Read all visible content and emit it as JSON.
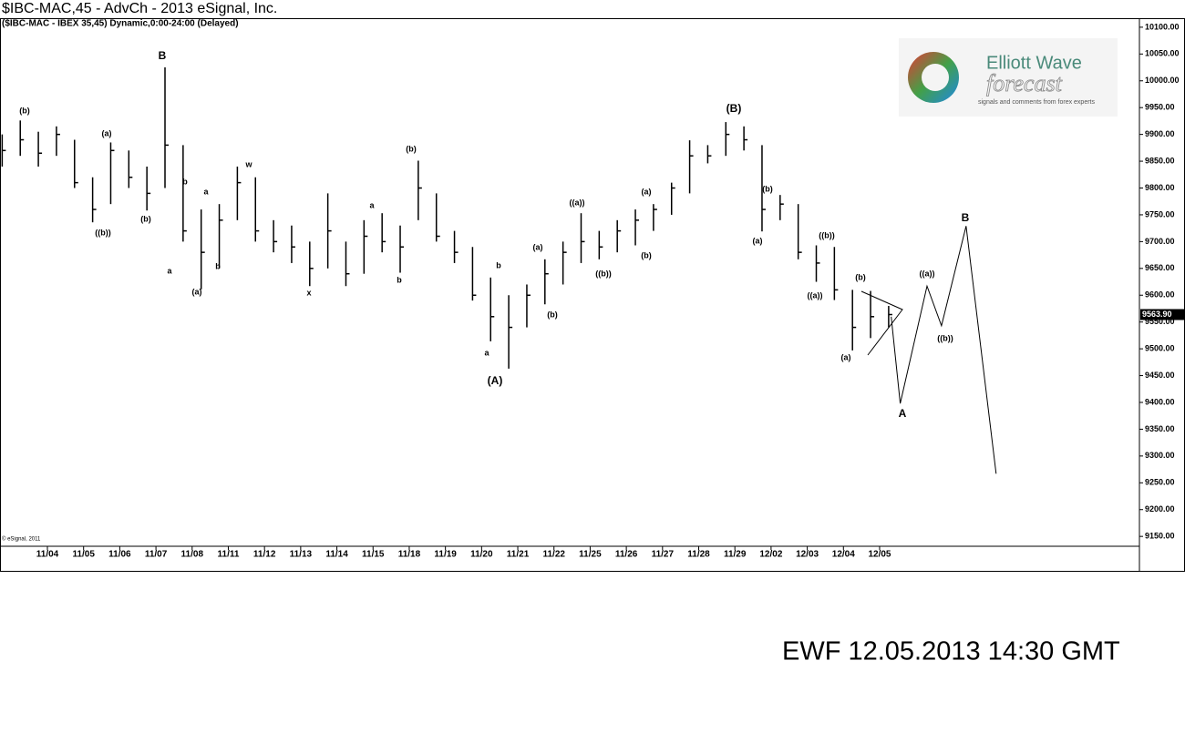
{
  "chart_data": {
    "type": "ohlc",
    "title": "$IBC-MAC,45 - AdvCh - 2013 eSignal, Inc.",
    "subtitle": "($IBC-MAC - IBEX 35,45) Dynamic,0:00-24:00 (Delayed)",
    "x": [
      -1.25,
      -0.75,
      -0.25,
      0.25,
      0.75,
      1.25,
      1.75,
      2.25,
      2.75,
      3.25,
      3.75,
      4.25,
      4.75,
      5.25,
      5.75,
      6.25,
      6.75,
      7.25,
      7.75,
      8.25,
      8.75,
      9.25,
      9.75,
      10.25,
      10.75,
      11.25,
      11.75,
      12.25,
      12.75,
      13.25,
      13.75,
      14.25,
      14.75,
      15.25,
      15.75,
      16.25,
      16.75,
      17.25,
      17.75,
      18.25,
      18.75,
      19.25,
      19.75,
      20.25,
      20.75,
      21.25,
      21.75,
      22.25,
      22.75,
      23.25
    ],
    "high": [
      9900,
      9926,
      9905,
      9915,
      9890,
      9820,
      9885,
      9870,
      9840,
      10025,
      9880,
      9760,
      9770,
      9840,
      9820,
      9740,
      9730,
      9700,
      9790,
      9700,
      9740,
      9753,
      9730,
      9851,
      9790,
      9720,
      9690,
      9633,
      9600,
      9620,
      9667,
      9700,
      9753,
      9720,
      9740,
      9760,
      9770,
      9810,
      9889,
      9880,
      9923,
      9915,
      9880,
      9787,
      9770,
      9693,
      9690,
      9610,
      9608,
      9580
    ],
    "low": [
      9840,
      9860,
      9840,
      9860,
      9800,
      9736,
      9770,
      9800,
      9758,
      9800,
      9700,
      9611,
      9650,
      9740,
      9700,
      9680,
      9660,
      9617,
      9650,
      9617,
      9640,
      9680,
      9642,
      9740,
      9700,
      9660,
      9590,
      9514,
      9463,
      9540,
      9583,
      9620,
      9660,
      9667,
      9680,
      9693,
      9720,
      9750,
      9790,
      9846,
      9860,
      9870,
      9719,
      9740,
      9667,
      9625,
      9591,
      9497,
      9520,
      9540
    ],
    "close": [
      9870,
      9890,
      9865,
      9900,
      9810,
      9760,
      9870,
      9820,
      9790,
      9880,
      9720,
      9680,
      9740,
      9810,
      9720,
      9700,
      9690,
      9650,
      9720,
      9640,
      9710,
      9700,
      9690,
      9800,
      9710,
      9680,
      9600,
      9560,
      9540,
      9600,
      9640,
      9680,
      9700,
      9690,
      9720,
      9740,
      9760,
      9800,
      9860,
      9860,
      9900,
      9890,
      9760,
      9770,
      9680,
      9660,
      9610,
      9540,
      9560,
      9563.9
    ],
    "color": "#000000",
    "projection": {
      "x": [
        23.32,
        23.57,
        24.31,
        24.71,
        25.39,
        26.22
      ],
      "y": [
        9560,
        9398,
        9617,
        9543,
        9729,
        9267
      ]
    },
    "last_price": {
      "value": 9563.9,
      "label": "9563.90"
    },
    "xlim": [
      -1.31,
      30.13
    ],
    "xticks": [
      {
        "value": 0,
        "label": "11/04"
      },
      {
        "value": 1,
        "label": "11/05"
      },
      {
        "value": 2,
        "label": "11/06"
      },
      {
        "value": 3,
        "label": "11/07"
      },
      {
        "value": 4,
        "label": "11/08"
      },
      {
        "value": 5,
        "label": "11/11"
      },
      {
        "value": 6,
        "label": "11/12"
      },
      {
        "value": 7,
        "label": "11/13"
      },
      {
        "value": 8,
        "label": "11/14"
      },
      {
        "value": 9,
        "label": "11/15"
      },
      {
        "value": 10,
        "label": "11/18"
      },
      {
        "value": 11,
        "label": "11/19"
      },
      {
        "value": 12,
        "label": "11/20"
      },
      {
        "value": 13,
        "label": "11/21"
      },
      {
        "value": 14,
        "label": "11/22"
      },
      {
        "value": 15,
        "label": "11/25"
      },
      {
        "value": 16,
        "label": "11/26"
      },
      {
        "value": 17,
        "label": "11/27"
      },
      {
        "value": 18,
        "label": "11/28"
      },
      {
        "value": 19,
        "label": "11/29"
      },
      {
        "value": 20,
        "label": "12/02"
      },
      {
        "value": 21,
        "label": "12/03"
      },
      {
        "value": 22,
        "label": "12/04"
      },
      {
        "value": 23,
        "label": "12/05"
      }
    ],
    "ylim": [
      9131.6,
      10116.8
    ],
    "yticks": [
      {
        "value": 9150,
        "label": "9150.00"
      },
      {
        "value": 9200,
        "label": "9200.00"
      },
      {
        "value": 9250,
        "label": "9250.00"
      },
      {
        "value": 9300,
        "label": "9300.00"
      },
      {
        "value": 9350,
        "label": "9350.00"
      },
      {
        "value": 9400,
        "label": "9400.00"
      },
      {
        "value": 9450,
        "label": "9450.00"
      },
      {
        "value": 9500,
        "label": "9500.00"
      },
      {
        "value": 9550,
        "label": "9550.00"
      },
      {
        "value": 9600,
        "label": "9600.00"
      },
      {
        "value": 9650,
        "label": "9650.00"
      },
      {
        "value": 9700,
        "label": "9700.00"
      },
      {
        "value": 9750,
        "label": "9750.00"
      },
      {
        "value": 9800,
        "label": "9800.00"
      },
      {
        "value": 9850,
        "label": "9850.00"
      },
      {
        "value": 9900,
        "label": "9900.00"
      },
      {
        "value": 9950,
        "label": "9950.00"
      },
      {
        "value": 10000,
        "label": "10000.00"
      },
      {
        "value": 10050,
        "label": "10050.00"
      },
      {
        "value": 10100,
        "label": "10100.00"
      }
    ],
    "grid": false,
    "annotations": [
      "(b)",
      "((b))",
      "(a)",
      "(b)",
      "B",
      "b",
      "a",
      "a",
      "(a)",
      "b",
      "w",
      "a",
      "x",
      "b",
      "(b)",
      "b",
      "a",
      "(A)",
      "(a)",
      "(b)",
      "((a))",
      "((b))",
      "(a)",
      "(b)",
      "(B)",
      "(b)",
      "(a)",
      "((b))",
      "((a))",
      "(b)",
      "(a)",
      "A",
      "((a))",
      "((b))",
      "B"
    ],
    "copyright": "© eSignal, 2011",
    "logo": {
      "title": "Elliott Wave",
      "subtitle": "forecast",
      "tagline": "signals and comments from forex experts"
    },
    "footer": "EWF 12.05.2013  14:30 GMT"
  }
}
